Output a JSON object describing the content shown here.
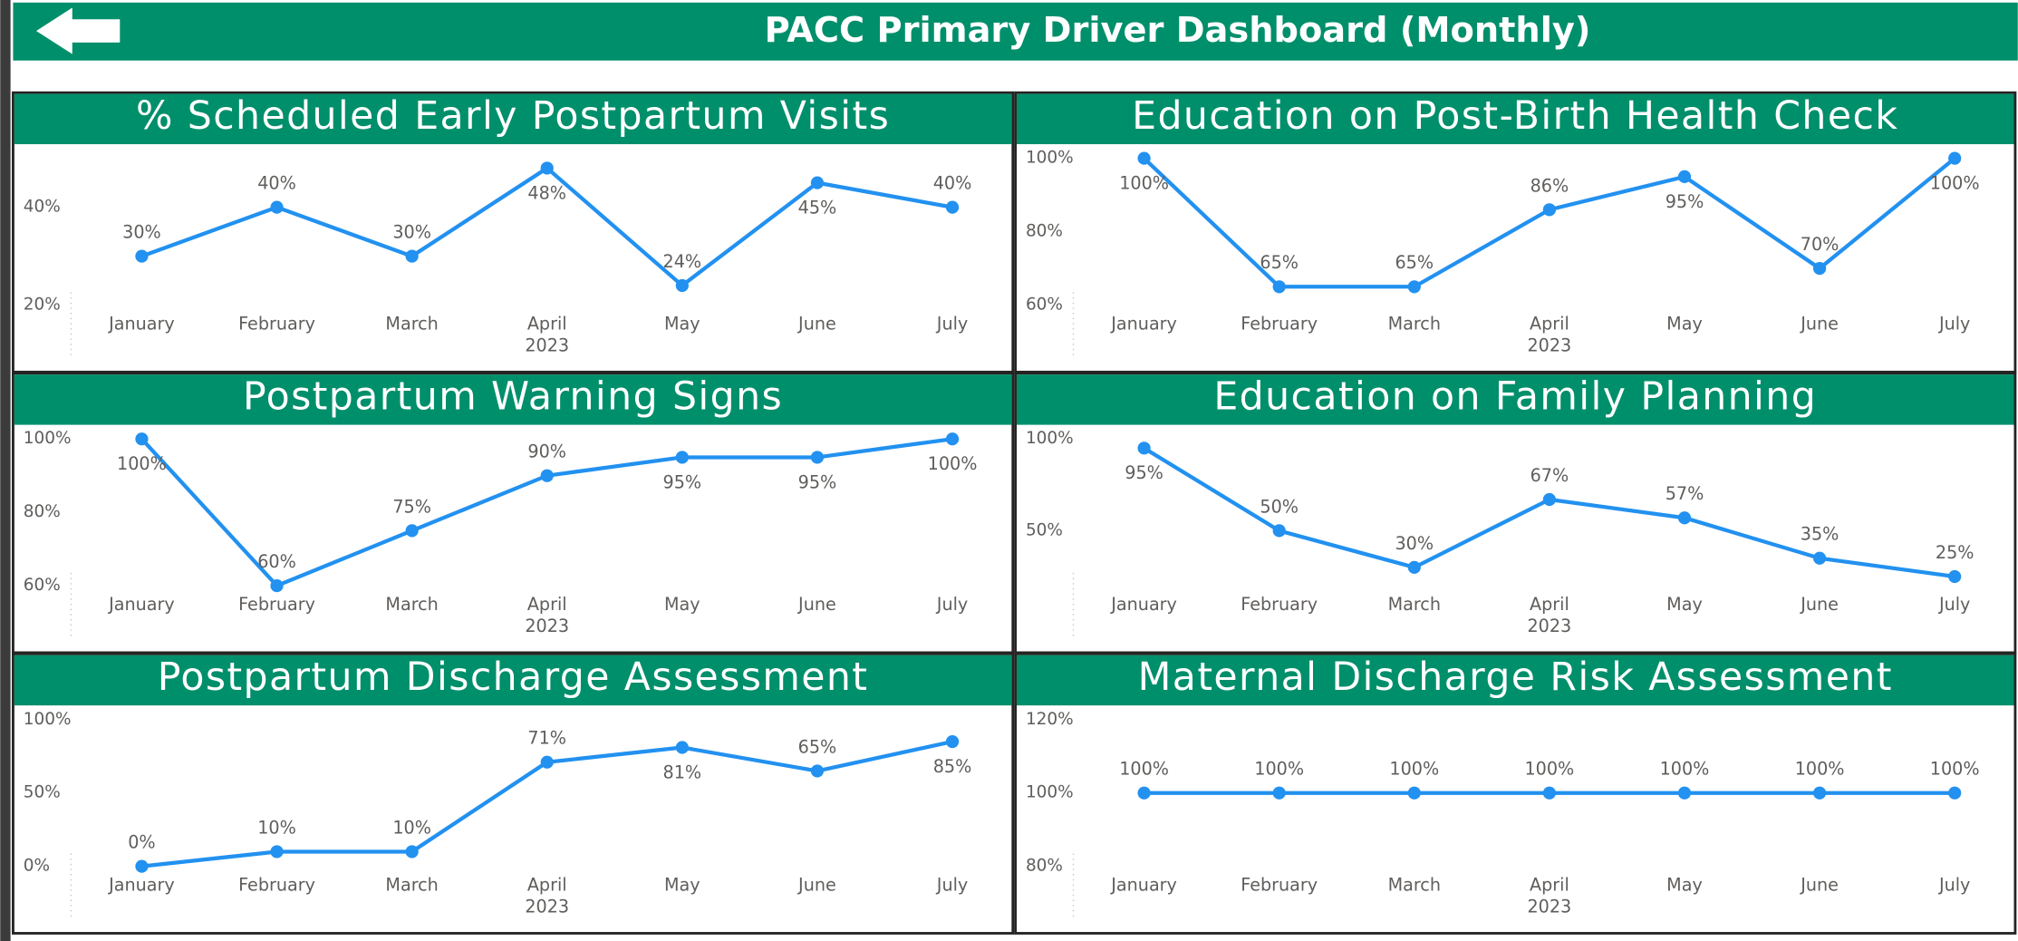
{
  "header": {
    "title": "PACC Primary Driver Dashboard (Monthly)"
  },
  "chart_data": [
    {
      "type": "line",
      "title": "% Scheduled Early Postpartum Visits",
      "xlabel": "2023",
      "categories": [
        "January",
        "February",
        "March",
        "April",
        "May",
        "June",
        "July"
      ],
      "values": [
        30,
        40,
        30,
        48,
        24,
        45,
        40
      ],
      "value_labels": [
        "30%",
        "40%",
        "30%",
        "48%",
        "24%",
        "45%",
        "40%"
      ],
      "ylim": [
        20,
        50
      ],
      "yticks": [
        {
          "value": 20,
          "label": "20%"
        },
        {
          "value": 40,
          "label": "40%"
        }
      ],
      "color": "#2291f0"
    },
    {
      "type": "line",
      "title": "Education on Post-Birth Health Check",
      "xlabel": "2023",
      "categories": [
        "January",
        "February",
        "March",
        "April",
        "May",
        "June",
        "July"
      ],
      "values": [
        100,
        65,
        65,
        86,
        95,
        70,
        100
      ],
      "value_labels": [
        "100%",
        "65%",
        "65%",
        "86%",
        "95%",
        "70%",
        "100%"
      ],
      "ylim": [
        60,
        100
      ],
      "yticks": [
        {
          "value": 60,
          "label": "60%"
        },
        {
          "value": 80,
          "label": "80%"
        },
        {
          "value": 100,
          "label": "100%"
        }
      ],
      "color": "#2291f0"
    },
    {
      "type": "line",
      "title": "Postpartum Warning Signs",
      "xlabel": "2023",
      "categories": [
        "January",
        "February",
        "March",
        "April",
        "May",
        "June",
        "July"
      ],
      "values": [
        100,
        60,
        75,
        90,
        95,
        95,
        100
      ],
      "value_labels": [
        "100%",
        "60%",
        "75%",
        "90%",
        "95%",
        "95%",
        "100%"
      ],
      "ylim": [
        60,
        100
      ],
      "yticks": [
        {
          "value": 60,
          "label": "60%"
        },
        {
          "value": 80,
          "label": "80%"
        },
        {
          "value": 100,
          "label": "100%"
        }
      ],
      "color": "#2291f0"
    },
    {
      "type": "line",
      "title": "Education on Family Planning",
      "xlabel": "2023",
      "categories": [
        "January",
        "February",
        "March",
        "April",
        "May",
        "June",
        "July"
      ],
      "values": [
        95,
        50,
        30,
        67,
        57,
        35,
        25
      ],
      "value_labels": [
        "95%",
        "50%",
        "30%",
        "67%",
        "57%",
        "35%",
        "25%"
      ],
      "ylim": [
        20,
        100
      ],
      "yticks": [
        {
          "value": 50,
          "label": "50%"
        },
        {
          "value": 100,
          "label": "100%"
        }
      ],
      "color": "#2291f0"
    },
    {
      "type": "line",
      "title": "Postpartum Discharge Assessment",
      "xlabel": "2023",
      "categories": [
        "January",
        "February",
        "March",
        "April",
        "May",
        "June",
        "July"
      ],
      "values": [
        0,
        10,
        10,
        71,
        81,
        65,
        85
      ],
      "value_labels": [
        "0%",
        "10%",
        "10%",
        "71%",
        "81%",
        "65%",
        "85%"
      ],
      "ylim": [
        0,
        100
      ],
      "yticks": [
        {
          "value": 0,
          "label": "0%"
        },
        {
          "value": 50,
          "label": "50%"
        },
        {
          "value": 100,
          "label": "100%"
        }
      ],
      "color": "#2291f0"
    },
    {
      "type": "line",
      "title": "Maternal Discharge Risk Assessment",
      "xlabel": "2023",
      "categories": [
        "January",
        "February",
        "March",
        "April",
        "May",
        "June",
        "July"
      ],
      "values": [
        100,
        100,
        100,
        100,
        100,
        100,
        100
      ],
      "value_labels": [
        "100%",
        "100%",
        "100%",
        "100%",
        "100%",
        "100%",
        "100%"
      ],
      "ylim": [
        80,
        120
      ],
      "yticks": [
        {
          "value": 80,
          "label": "80%"
        },
        {
          "value": 100,
          "label": "100%"
        },
        {
          "value": 120,
          "label": "120%"
        }
      ],
      "color": "#2291f0"
    }
  ]
}
